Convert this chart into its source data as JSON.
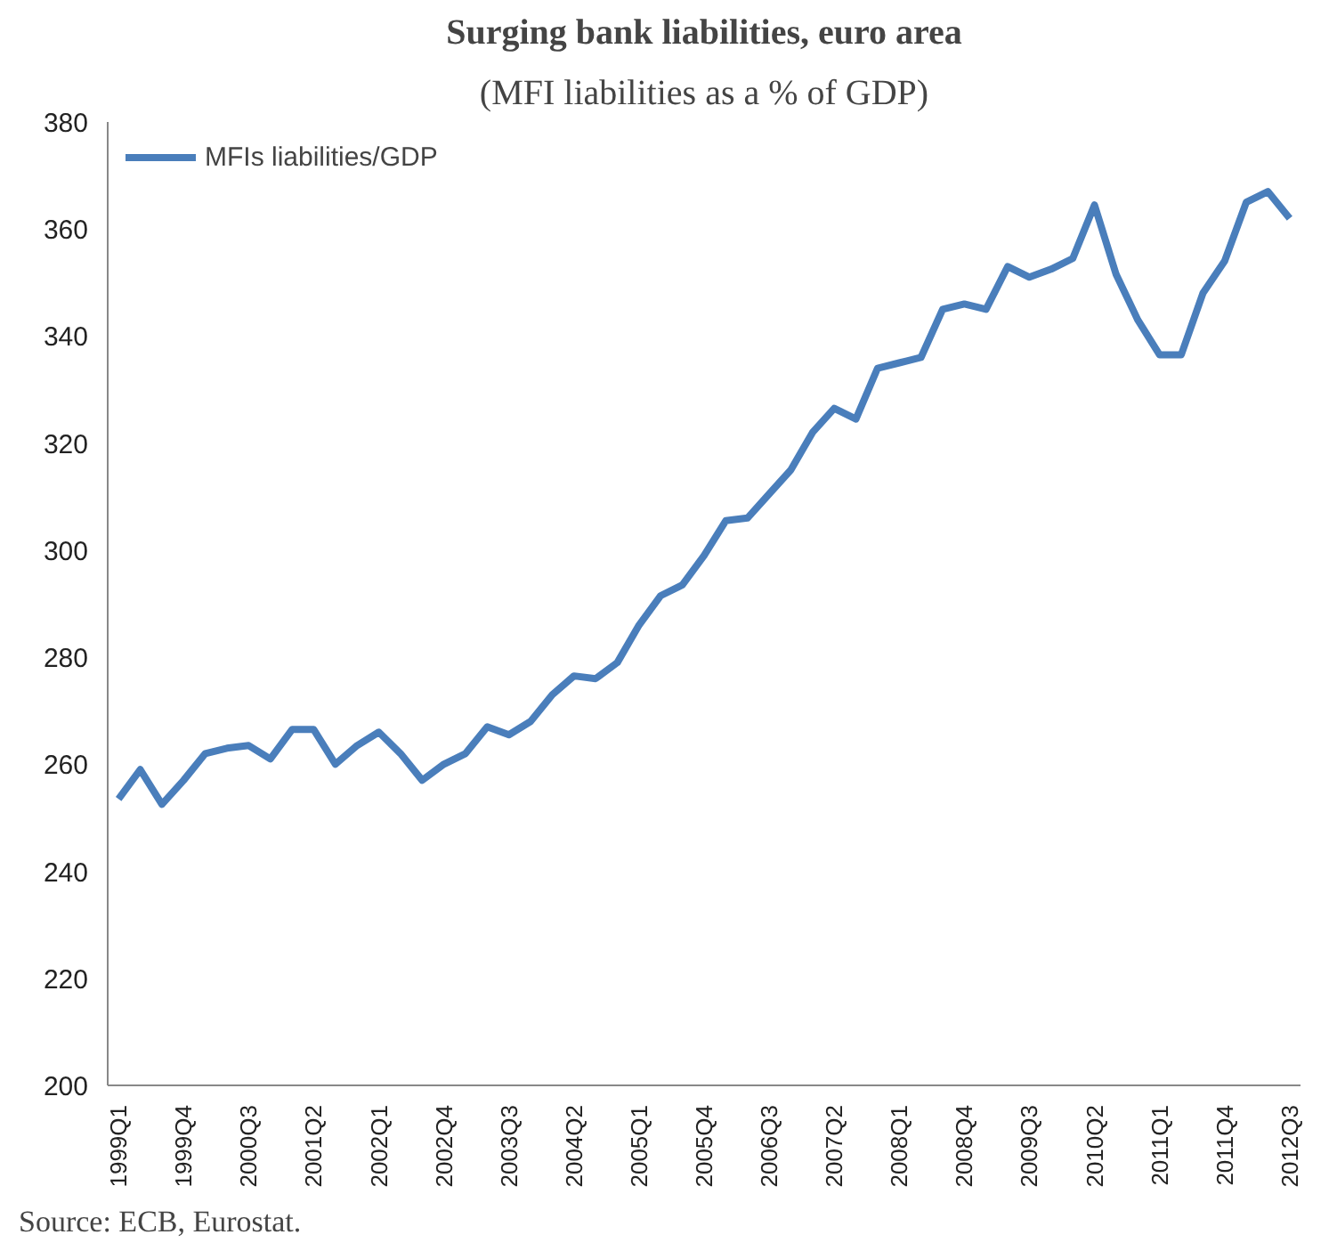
{
  "chart_data": {
    "type": "line",
    "title": "Surging bank liabilities, euro area",
    "subtitle": "(MFI liabilities as a % of GDP)",
    "categories": [
      "1999Q1",
      null,
      null,
      "1999Q4",
      null,
      null,
      "2000Q3",
      null,
      null,
      "2001Q2",
      null,
      null,
      "2002Q1",
      null,
      null,
      "2002Q4",
      null,
      null,
      "2003Q3",
      null,
      null,
      "2004Q2",
      null,
      null,
      "2005Q1",
      null,
      null,
      "2005Q4",
      null,
      null,
      "2006Q3",
      null,
      null,
      "2007Q2",
      null,
      null,
      "2008Q1",
      null,
      null,
      "2008Q4",
      null,
      null,
      "2009Q3",
      null,
      null,
      "2010Q2",
      null,
      null,
      "2011Q1",
      null,
      null,
      "2011Q4",
      null,
      null,
      "2012Q3"
    ],
    "series": [
      {
        "name": "MFIs liabilities/GDP",
        "color": "#4a7ebb",
        "values": [
          253.5,
          259,
          252.5,
          257,
          262,
          263,
          263.5,
          261,
          266.5,
          266.5,
          260,
          263.5,
          266,
          262,
          257,
          260,
          262,
          267,
          265.5,
          268,
          273,
          276.5,
          276,
          279,
          286,
          291.5,
          293.5,
          299,
          305.5,
          306,
          310.5,
          315,
          322,
          326.5,
          324.5,
          334,
          335,
          336,
          345,
          346,
          345,
          353,
          351,
          352.5,
          354.5,
          364.5,
          351.5,
          343,
          336.5,
          336.5,
          348,
          354,
          365,
          367,
          362
        ]
      }
    ],
    "ylim": [
      200,
      380
    ],
    "yticks": [
      200,
      220,
      240,
      260,
      280,
      300,
      320,
      340,
      360,
      380
    ],
    "legend": "top left",
    "marker": "none",
    "line_style": "solid",
    "annotations": [
      "Source: ECB, Eurostat."
    ]
  }
}
